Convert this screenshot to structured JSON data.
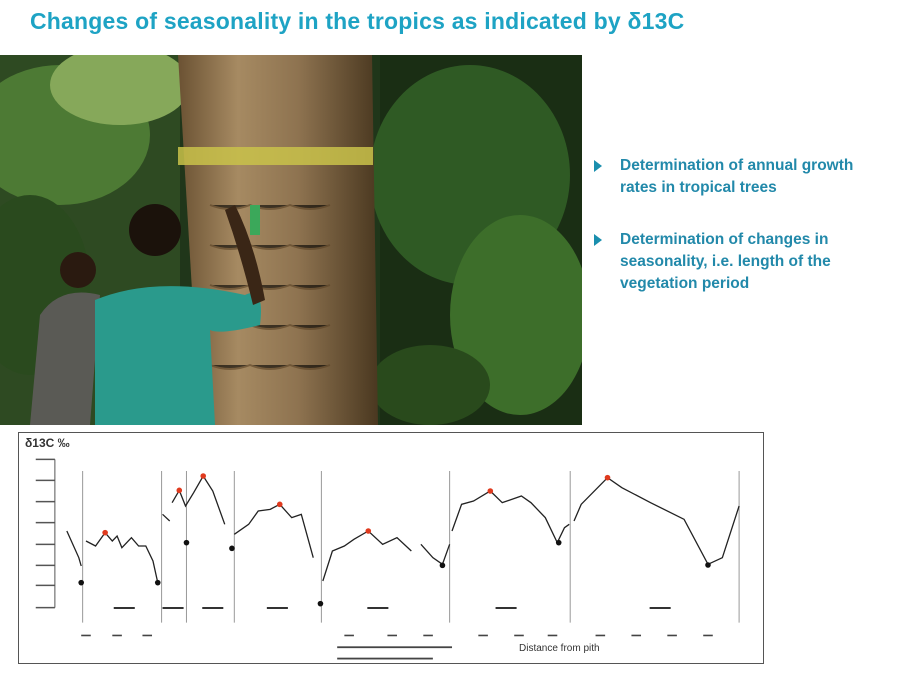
{
  "slide": {
    "title": "Changes of seasonality in the tropics as indicated by δ13C"
  },
  "bullets": [
    {
      "text": "Determination of annual growth rates in tropical trees",
      "icon": "triangle-bullet-icon"
    },
    {
      "text": "Determination of changes in seasonality, i.e. length of the vegetation period",
      "icon": "triangle-bullet-icon"
    }
  ],
  "figure": {
    "y_label": "δ13C ‰",
    "x_caption": "Distance from pith",
    "highlight_color": "#e03a1e"
  },
  "colors": {
    "accent": "#1ea3c4",
    "bullet_text": "#2289aa"
  }
}
